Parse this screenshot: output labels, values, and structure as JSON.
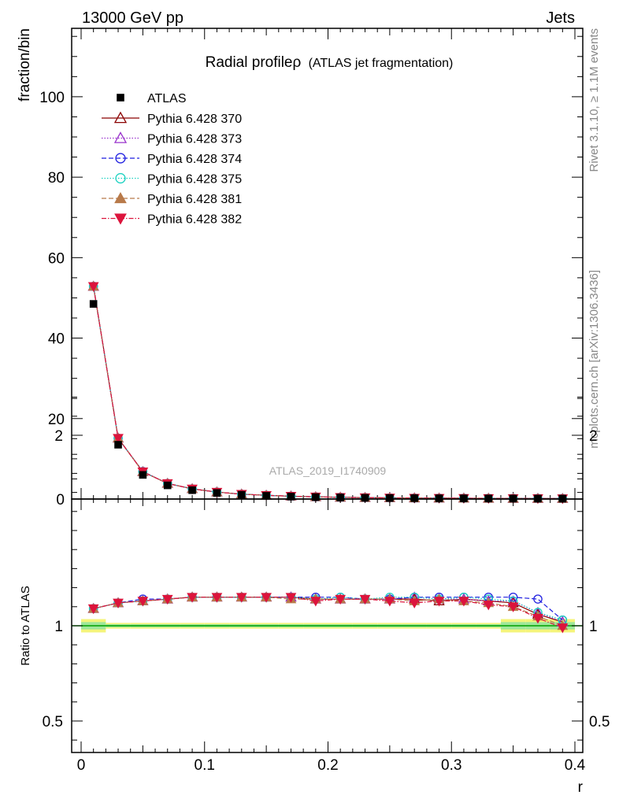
{
  "header": {
    "left": "13000 GeV pp",
    "right": "Jets",
    "side_rivet": "Rivet 3.1.10, ≥ 1.1M events",
    "side_mcplots": "mcplots.cern.ch [arXiv:1306.3436]",
    "watermark": "ATLAS_2019_I1740909"
  },
  "chart_data": {
    "type": "line",
    "title": "Radial profileρ",
    "title_suffix": "(ATLAS jet fragmentation)",
    "xlabel": "r",
    "ylabel": "fraction/bin",
    "ratio_ylabel": "Ratio to ATLAS",
    "xlim": [
      -0.01,
      0.4
    ],
    "ylim": [
      0,
      117
    ],
    "ratio_ylim": [
      0.35,
      2.3
    ],
    "x_ticks": [
      "0",
      "0.1",
      "0.2",
      "0.3",
      "0.4"
    ],
    "y_ticks": [
      "0",
      "20",
      "40",
      "60",
      "80",
      "100"
    ],
    "ratio_ticks": [
      "0.5",
      "1",
      "2"
    ],
    "x": [
      0.01,
      0.03,
      0.05,
      0.07,
      0.09,
      0.11,
      0.13,
      0.15,
      0.17,
      0.19,
      0.21,
      0.23,
      0.25,
      0.27,
      0.29,
      0.31,
      0.33,
      0.35,
      0.37,
      0.39
    ],
    "data": {
      "name": "ATLAS",
      "values": [
        48.5,
        13.5,
        6.0,
        3.4,
        2.2,
        1.5,
        1.05,
        0.8,
        0.62,
        0.48,
        0.38,
        0.31,
        0.26,
        0.22,
        0.19,
        0.17,
        0.15,
        0.13,
        0.12,
        0.11
      ]
    },
    "series": [
      {
        "name": "Pythia 6.428 370",
        "color": "#8b0000",
        "dash": "",
        "marker": "triangle-open",
        "ratio": [
          1.09,
          1.12,
          1.13,
          1.14,
          1.15,
          1.15,
          1.15,
          1.15,
          1.15,
          1.14,
          1.14,
          1.14,
          1.14,
          1.14,
          1.13,
          1.14,
          1.13,
          1.12,
          1.06,
          1.02
        ]
      },
      {
        "name": "Pythia 6.428 373",
        "color": "#9932cc",
        "dash": "1.5,2",
        "marker": "triangle-open",
        "ratio": [
          1.09,
          1.12,
          1.13,
          1.14,
          1.15,
          1.15,
          1.15,
          1.15,
          1.15,
          1.14,
          1.14,
          1.14,
          1.14,
          1.15,
          1.14,
          1.14,
          1.13,
          1.13,
          1.07,
          1.02
        ]
      },
      {
        "name": "Pythia 6.428 374",
        "color": "#1f1fe0",
        "dash": "6,3",
        "marker": "circle-open",
        "ratio": [
          1.09,
          1.12,
          1.14,
          1.14,
          1.15,
          1.15,
          1.15,
          1.15,
          1.15,
          1.15,
          1.15,
          1.14,
          1.14,
          1.15,
          1.15,
          1.15,
          1.15,
          1.15,
          1.14,
          1.03
        ]
      },
      {
        "name": "Pythia 6.428 375",
        "color": "#1ad1c0",
        "dash": "1.5,2",
        "marker": "circle-open",
        "ratio": [
          1.09,
          1.12,
          1.13,
          1.14,
          1.15,
          1.15,
          1.15,
          1.15,
          1.15,
          1.14,
          1.15,
          1.14,
          1.15,
          1.15,
          1.14,
          1.15,
          1.14,
          1.13,
          1.07,
          1.03
        ]
      },
      {
        "name": "Pythia 6.428 381",
        "color": "#b87a4a",
        "dash": "6,3",
        "marker": "triangle-filled",
        "ratio": [
          1.09,
          1.12,
          1.13,
          1.14,
          1.15,
          1.15,
          1.15,
          1.15,
          1.14,
          1.14,
          1.14,
          1.14,
          1.14,
          1.13,
          1.14,
          1.13,
          1.12,
          1.1,
          1.05,
          1.0
        ]
      },
      {
        "name": "Pythia 6.428 382",
        "color": "#dc143c",
        "dash": "6,2,1.5,2",
        "marker": "triangle-down-filled",
        "ratio": [
          1.09,
          1.12,
          1.13,
          1.14,
          1.15,
          1.15,
          1.15,
          1.15,
          1.15,
          1.13,
          1.14,
          1.14,
          1.13,
          1.12,
          1.13,
          1.13,
          1.11,
          1.1,
          1.04,
          0.99
        ]
      }
    ]
  }
}
